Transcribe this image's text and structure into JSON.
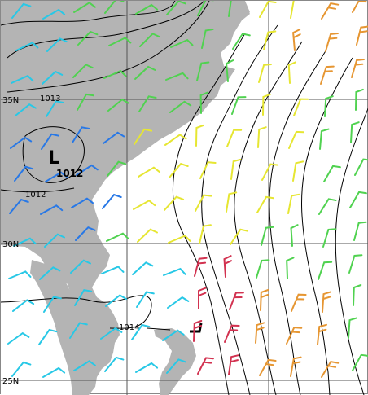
{
  "map": {
    "latitude_labels": [
      "35N",
      "30N",
      "25N"
    ],
    "isobar_labels": [
      "1013",
      "1012",
      "1014"
    ],
    "low_center": {
      "symbol": "L",
      "pressure": "1012"
    },
    "colors": {
      "land": "#b4b4b4",
      "sea": "#ffffff",
      "grid": "#555555",
      "isobar": "#000000",
      "wind_cyan": "#28c8e6",
      "wind_blue": "#2878e6",
      "wind_green": "#50d250",
      "wind_yellow": "#e6e632",
      "wind_orange": "#e69632",
      "wind_red": "#d23250"
    },
    "grid_spacing_degrees": 5,
    "legend": "none"
  }
}
